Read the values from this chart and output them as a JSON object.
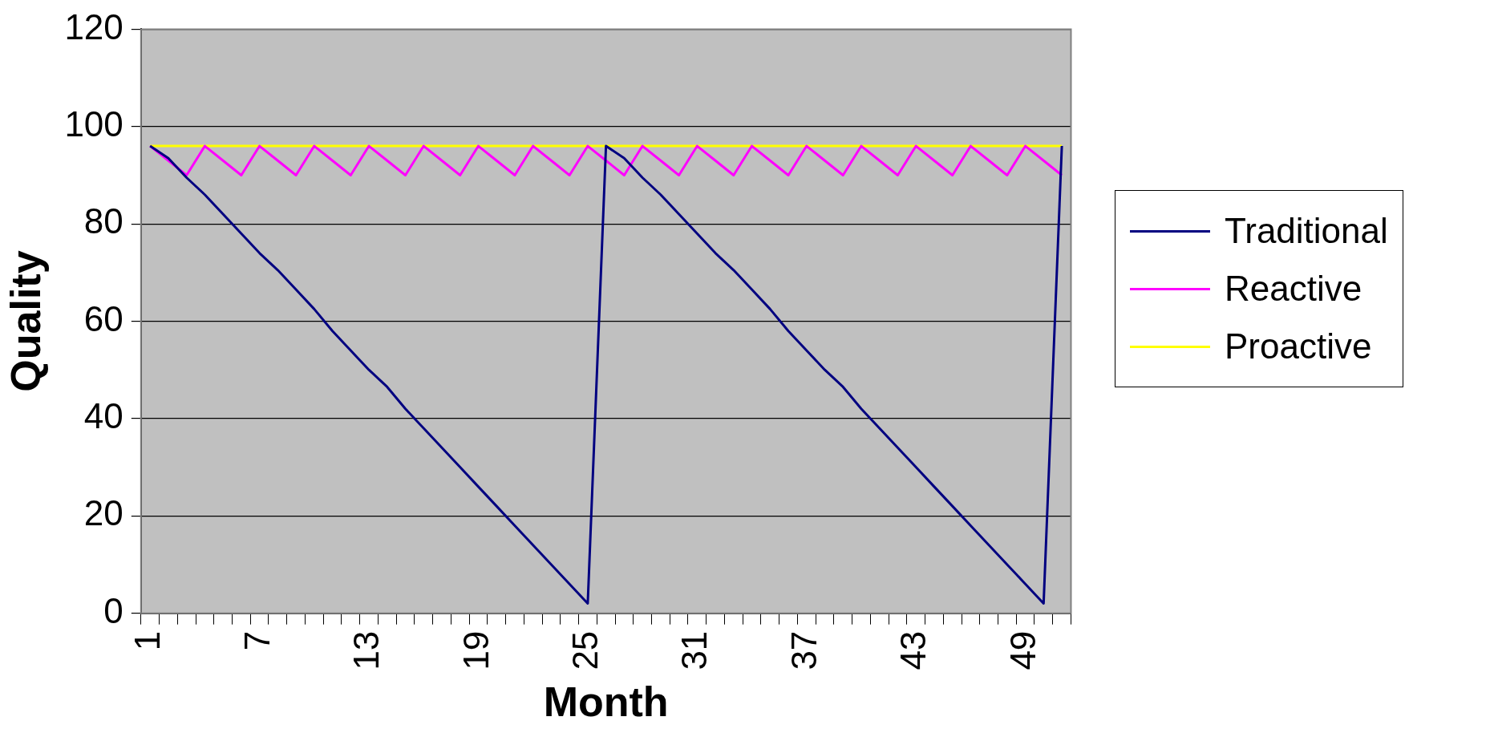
{
  "chart_data": {
    "type": "line",
    "xlabel": "Month",
    "ylabel": "Quality",
    "categories": [
      "1",
      null,
      null,
      null,
      null,
      null,
      "7",
      null,
      null,
      null,
      null,
      null,
      "13",
      null,
      null,
      null,
      null,
      null,
      "19",
      null,
      null,
      null,
      null,
      null,
      "25",
      null,
      null,
      null,
      null,
      null,
      "31",
      null,
      null,
      null,
      null,
      null,
      "37",
      null,
      null,
      null,
      null,
      null,
      "43",
      null,
      null,
      null,
      null,
      null,
      "49",
      null,
      null
    ],
    "series": [
      {
        "name": "Traditional",
        "color": "#000080",
        "values": [
          96,
          93.5,
          89.5,
          86,
          82,
          78,
          74,
          70.5,
          66.5,
          62.5,
          58,
          54,
          50,
          46.5,
          42,
          38,
          34,
          30,
          26,
          22,
          18,
          14,
          10,
          6,
          2,
          96,
          93.5,
          89.5,
          86,
          82,
          78,
          74,
          70.5,
          66.5,
          62.5,
          58,
          54,
          50,
          46.5,
          42,
          38,
          34,
          30,
          26,
          22,
          18,
          14,
          10,
          6,
          2,
          96
        ]
      },
      {
        "name": "Reactive",
        "color": "#ff00ff",
        "values": [
          96,
          93,
          90,
          96,
          93,
          90,
          96,
          93,
          90,
          96,
          93,
          90,
          96,
          93,
          90,
          96,
          93,
          90,
          96,
          93,
          90,
          96,
          93,
          90,
          96,
          93,
          90,
          96,
          93,
          90,
          96,
          93,
          90,
          96,
          93,
          90,
          96,
          93,
          90,
          96,
          93,
          90,
          96,
          93,
          90,
          96,
          93,
          90,
          96,
          93,
          90
        ]
      },
      {
        "name": "Proactive",
        "color": "#ffff00",
        "values": [
          96,
          96,
          96,
          96,
          96,
          96,
          96,
          96,
          96,
          96,
          96,
          96,
          96,
          96,
          96,
          96,
          96,
          96,
          96,
          96,
          96,
          96,
          96,
          96,
          96,
          96,
          96,
          96,
          96,
          96,
          96,
          96,
          96,
          96,
          96,
          96,
          96,
          96,
          96,
          96,
          96,
          96,
          96,
          96,
          96,
          96,
          96,
          96,
          96,
          96,
          96
        ]
      }
    ],
    "ylim": [
      0,
      120
    ],
    "yticks": [
      0,
      20,
      40,
      60,
      80,
      100,
      120
    ],
    "grid": "y",
    "legend": "right",
    "marker": "none",
    "line_style": "solid"
  }
}
